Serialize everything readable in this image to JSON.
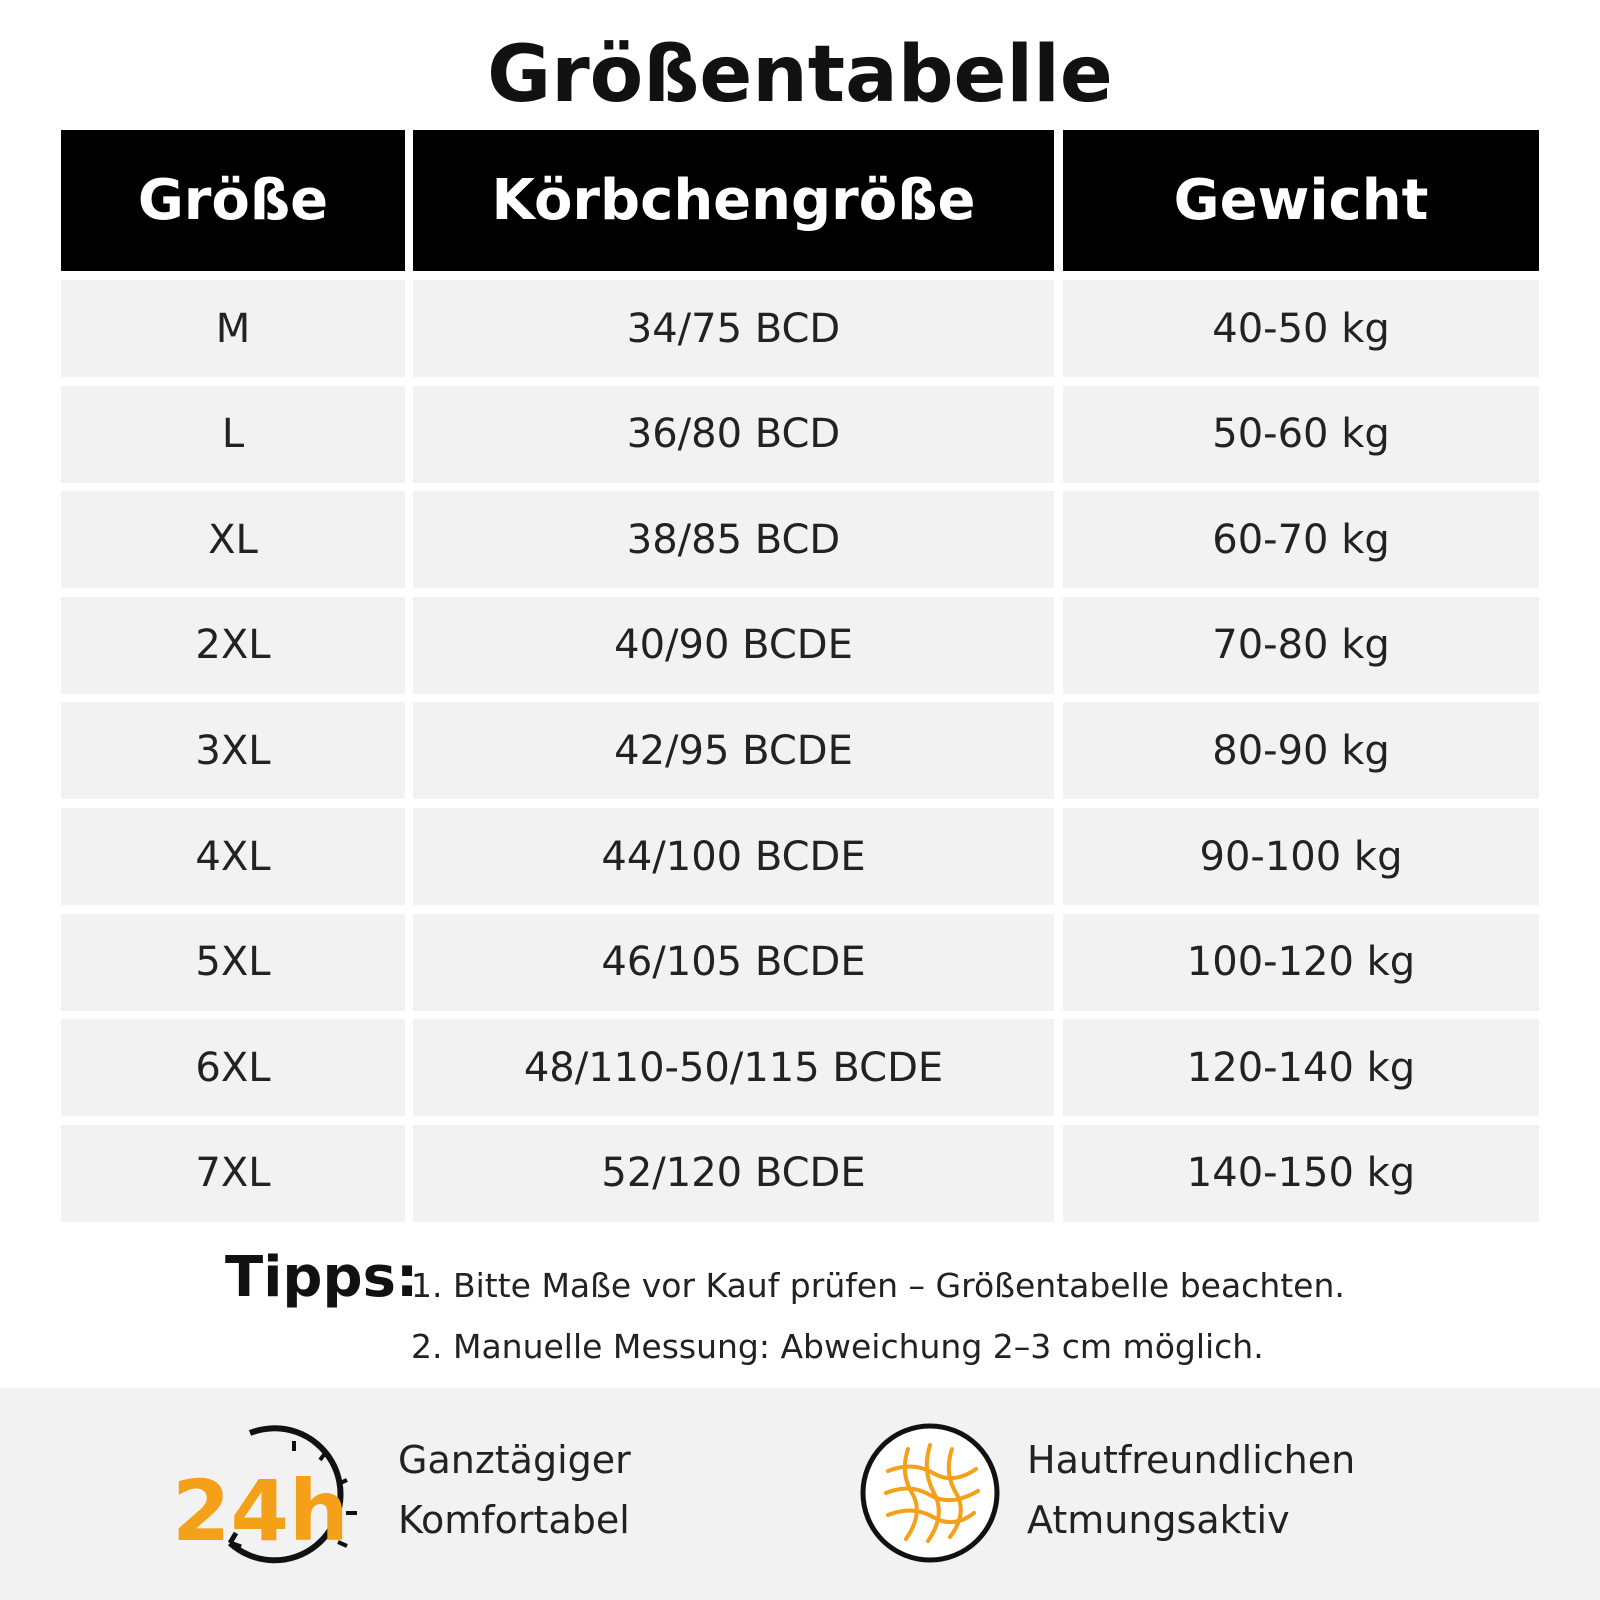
{
  "title": "Größentabelle",
  "table": {
    "header": [
      "Größe",
      "Körbchengröße",
      "Gewicht"
    ],
    "rows": [
      [
        "M",
        "34/75 BCD",
        "40-50 kg"
      ],
      [
        "L",
        "36/80 BCD",
        "50-60 kg"
      ],
      [
        "XL",
        "38/85 BCD",
        "60-70 kg"
      ],
      [
        "2XL",
        "40/90 BCDE",
        "70-80 kg"
      ],
      [
        "3XL",
        "42/95 BCDE",
        "80-90 kg"
      ],
      [
        "4XL",
        "44/100 BCDE",
        "90-100 kg"
      ],
      [
        "5XL",
        "46/105 BCDE",
        "100-120 kg"
      ],
      [
        "6XL",
        "48/110-50/115 BCDE",
        "120-140 kg"
      ],
      [
        "7XL",
        "52/120 BCDE",
        "140-150 kg"
      ]
    ]
  },
  "tips": {
    "label": "Tipps:",
    "items": [
      "1. Bitte Maße vor Kauf prüfen – Größentabelle beachten.",
      "2. Manuelle Messung: Abweichung 2–3 cm möglich."
    ]
  },
  "features": [
    {
      "icon_text": "24h",
      "lines": [
        "Ganztägiger",
        "Komfortabel"
      ]
    },
    {
      "lines": [
        "Hautfreundlichen",
        "Atmungsaktiv"
      ]
    }
  ]
}
